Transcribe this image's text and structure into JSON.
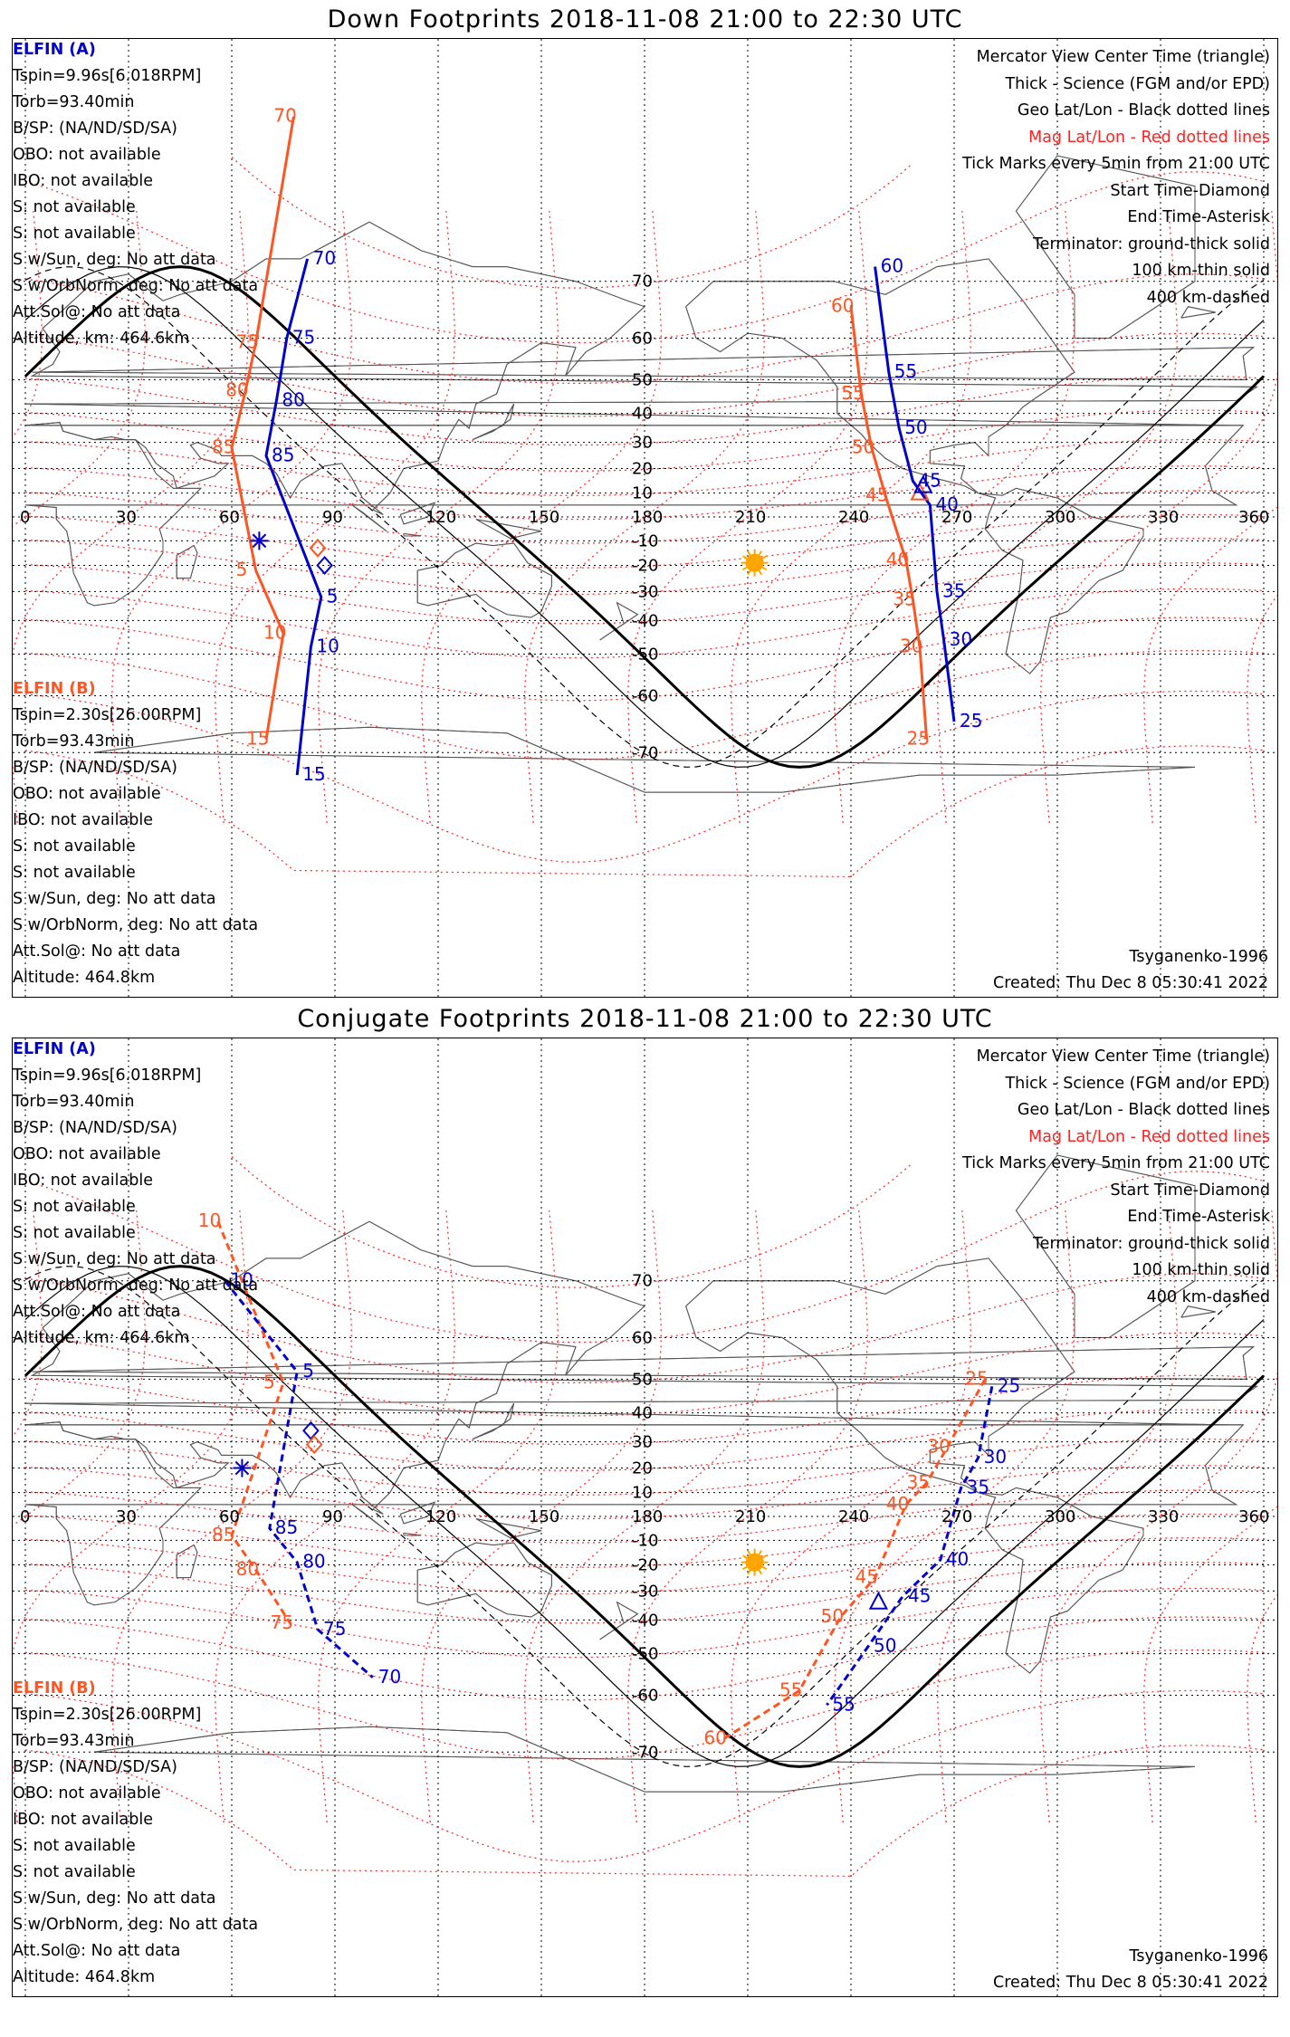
{
  "panels": [
    {
      "title": "Down Footprints 2018-11-08 21:00 to 22:30 UTC",
      "elfin_a": {
        "header": "ELFIN (A)",
        "lines": [
          "Tspin=9.96s[6.018RPM]",
          "Torb=93.40min",
          "B/SP: (NA/ND/SD/SA)",
          "OBO: not available",
          "IBO: not available",
          "S: not available",
          "S: not available",
          "S w/Sun, deg: No att data",
          "S w/OrbNorm, deg: No att data",
          "Att.Sol@: No att data",
          "Altitude, km: 464.6km"
        ]
      },
      "elfin_b": {
        "header": "ELFIN (B)",
        "lines": [
          "Tspin=2.30s[26.00RPM]",
          "Torb=93.43min",
          "B/SP: (NA/ND/SD/SA)",
          "OBO: not available",
          "IBO: not available",
          "S: not available",
          "S: not available",
          "S w/Sun, deg: No att data",
          "S w/OrbNorm, deg: No att data",
          "Att.Sol@: No att data",
          "Altitude: 464.8km"
        ]
      },
      "legend": [
        "Mercator View Center Time (triangle)",
        "Thick - Science (FGM and/or EPD)",
        "Geo Lat/Lon - Black dotted lines",
        "Mag Lat/Lon - Red dotted lines",
        "Tick Marks every 5min from 21:00 UTC",
        "Start Time-Diamond",
        "End Time-Asterisk",
        "Terminator: ground-thick solid",
        "100 km-thin solid",
        "400 km-dashed"
      ],
      "model": "Tsyganenko-1996",
      "created": "Created: Thu Dec  8 05:30:41 2022",
      "track_a_labels": [
        {
          "t": "70",
          "lon": 82,
          "lat": 73
        },
        {
          "t": "75",
          "lon": 76,
          "lat": 60
        },
        {
          "t": "80",
          "lon": 73,
          "lat": 44
        },
        {
          "t": "85",
          "lon": 70,
          "lat": 25
        },
        {
          "t": "5",
          "lon": 86,
          "lat": -32
        },
        {
          "t": "10",
          "lon": 83,
          "lat": -48
        },
        {
          "t": "15",
          "lon": 79,
          "lat": -73
        },
        {
          "t": "60",
          "lon": 247,
          "lat": 72
        },
        {
          "t": "55",
          "lon": 251,
          "lat": 52
        },
        {
          "t": "50",
          "lon": 254,
          "lat": 35
        },
        {
          "t": "45",
          "lon": 258,
          "lat": 15
        },
        {
          "t": "40",
          "lon": 263,
          "lat": 5
        },
        {
          "t": "35",
          "lon": 265,
          "lat": -30
        },
        {
          "t": "30",
          "lon": 267,
          "lat": -46
        },
        {
          "t": "25",
          "lon": 270,
          "lat": -65
        }
      ],
      "track_b_labels": [
        {
          "t": "70",
          "lon": 78,
          "lat": 84
        },
        {
          "t": "75",
          "lon": 67,
          "lat": 59
        },
        {
          "t": "80",
          "lon": 64,
          "lat": 47
        },
        {
          "t": "85",
          "lon": 60,
          "lat": 28
        },
        {
          "t": "5",
          "lon": 67,
          "lat": -22
        },
        {
          "t": "10",
          "lon": 75,
          "lat": -44
        },
        {
          "t": "15",
          "lon": 70,
          "lat": -68
        },
        {
          "t": "60",
          "lon": 240,
          "lat": 66
        },
        {
          "t": "55",
          "lon": 243,
          "lat": 46
        },
        {
          "t": "50",
          "lon": 246,
          "lat": 28
        },
        {
          "t": "45",
          "lon": 250,
          "lat": 9
        },
        {
          "t": "40",
          "lon": 256,
          "lat": -18
        },
        {
          "t": "35",
          "lon": 258,
          "lat": -33
        },
        {
          "t": "30",
          "lon": 260,
          "lat": -48
        },
        {
          "t": "25",
          "lon": 262,
          "lat": -68
        }
      ]
    },
    {
      "title": "Conjugate Footprints 2018-11-08 21:00 to 22:30 UTC",
      "elfin_a": {
        "header": "ELFIN (A)",
        "lines": [
          "Tspin=9.96s[6.018RPM]",
          "Torb=93.40min",
          "B/SP: (NA/ND/SD/SA)",
          "OBO: not available",
          "IBO: not available",
          "S: not available",
          "S: not available",
          "S w/Sun, deg: No att data",
          "S w/OrbNorm, deg: No att data",
          "Att.Sol@: No att data",
          "Altitude, km: 464.6km"
        ]
      },
      "elfin_b": {
        "header": "ELFIN (B)",
        "lines": [
          "Tspin=2.30s[26.00RPM]",
          "Torb=93.43min",
          "B/SP: (NA/ND/SD/SA)",
          "OBO: not available",
          "IBO: not available",
          "S: not available",
          "S: not available",
          "S w/Sun, deg: No att data",
          "S w/OrbNorm, deg: No att data",
          "Att.Sol@: No att data",
          "Altitude: 464.8km"
        ]
      },
      "legend": [
        "Mercator View Center Time (triangle)",
        "Thick - Science (FGM and/or EPD)",
        "Geo Lat/Lon - Black dotted lines",
        "Mag Lat/Lon - Red dotted lines",
        "Tick Marks every 5min from 21:00 UTC",
        "Start Time-Diamond",
        "End Time-Asterisk",
        "Terminator: ground-thick solid",
        "100 km-thin solid",
        "400 km-dashed"
      ],
      "model": "Tsyganenko-1996",
      "created": "Created: Thu Dec  8 05:30:41 2022",
      "track_a_labels": [
        {
          "t": "10",
          "lon": 58,
          "lat": 70
        },
        {
          "t": "5",
          "lon": 79,
          "lat": 52
        },
        {
          "t": "85",
          "lon": 71,
          "lat": -5
        },
        {
          "t": "80",
          "lon": 79,
          "lat": -19
        },
        {
          "t": "75",
          "lon": 85,
          "lat": -43
        },
        {
          "t": "70",
          "lon": 101,
          "lat": -56
        },
        {
          "t": "25",
          "lon": 281,
          "lat": 48
        },
        {
          "t": "30",
          "lon": 277,
          "lat": 24
        },
        {
          "t": "35",
          "lon": 272,
          "lat": 12
        },
        {
          "t": "40",
          "lon": 266,
          "lat": -18
        },
        {
          "t": "45",
          "lon": 255,
          "lat": -32
        },
        {
          "t": "50",
          "lon": 245,
          "lat": -48
        },
        {
          "t": "55",
          "lon": 233,
          "lat": -62
        }
      ],
      "track_b_labels": [
        {
          "t": "10",
          "lon": 56,
          "lat": 77
        },
        {
          "t": "5",
          "lon": 75,
          "lat": 49
        },
        {
          "t": "85",
          "lon": 60,
          "lat": -8
        },
        {
          "t": "80",
          "lon": 67,
          "lat": -22
        },
        {
          "t": "75",
          "lon": 77,
          "lat": -41
        },
        {
          "t": "25",
          "lon": 279,
          "lat": 50
        },
        {
          "t": "30",
          "lon": 268,
          "lat": 28
        },
        {
          "t": "35",
          "lon": 262,
          "lat": 14
        },
        {
          "t": "40",
          "lon": 256,
          "lat": 5
        },
        {
          "t": "45",
          "lon": 247,
          "lat": -25
        },
        {
          "t": "50",
          "lon": 237,
          "lat": -39
        },
        {
          "t": "55",
          "lon": 225,
          "lat": -59
        },
        {
          "t": "60",
          "lon": 203,
          "lat": -68
        }
      ]
    }
  ],
  "axis": {
    "lon_ticks": [
      0,
      30,
      60,
      90,
      120,
      150,
      180,
      210,
      240,
      270,
      300,
      330,
      360
    ],
    "lat_ticks": [
      70,
      60,
      50,
      40,
      30,
      20,
      10,
      -10,
      -20,
      -30,
      -40,
      -50,
      -60,
      -70
    ],
    "lon_tick_labels": [
      "0",
      "30",
      "60",
      "90",
      "120",
      "150",
      "180",
      "210",
      "240",
      "270",
      "300",
      "330",
      "360"
    ],
    "lat_tick_labels": [
      "70",
      "60",
      "50",
      "40",
      "30",
      "20",
      "10",
      "-10",
      "-20",
      "-30",
      "-40",
      "-50",
      "-60",
      "-70"
    ]
  },
  "colors": {
    "elfin_a": "#0000cc",
    "elfin_b": "#ff5522",
    "mag_grid": "#ff2222",
    "sun": "#ffa500"
  }
}
